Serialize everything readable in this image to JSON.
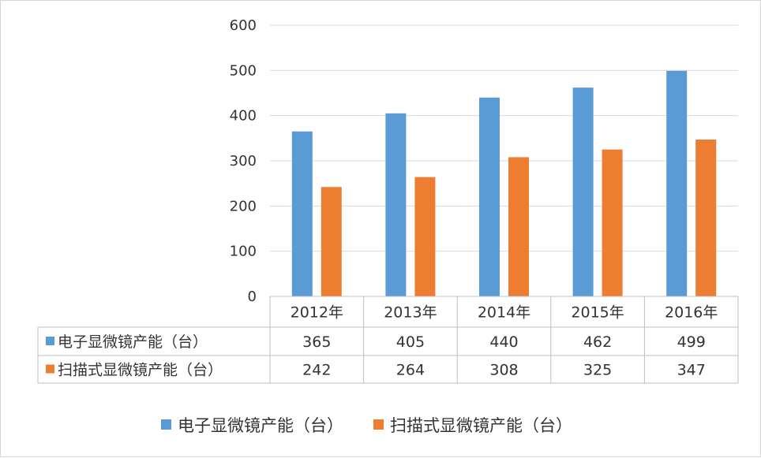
{
  "chart_data": {
    "type": "bar",
    "title": "",
    "xlabel": "",
    "ylabel": "",
    "categories": [
      "2012年",
      "2013年",
      "2014年",
      "2015年",
      "2016年"
    ],
    "series": [
      {
        "name": "电子显微镜产能（台）",
        "color": "#5b9bd5",
        "values": [
          365,
          405,
          440,
          462,
          499
        ]
      },
      {
        "name": "扫描式显微镜产能（台）",
        "color": "#ed7d31",
        "values": [
          242,
          264,
          308,
          325,
          347
        ]
      }
    ],
    "ylim": [
      0,
      600
    ],
    "yticks": [
      "0",
      "100",
      "200",
      "300",
      "400",
      "500",
      "600"
    ],
    "grid": true,
    "legend": "bottom",
    "data_table": true
  }
}
